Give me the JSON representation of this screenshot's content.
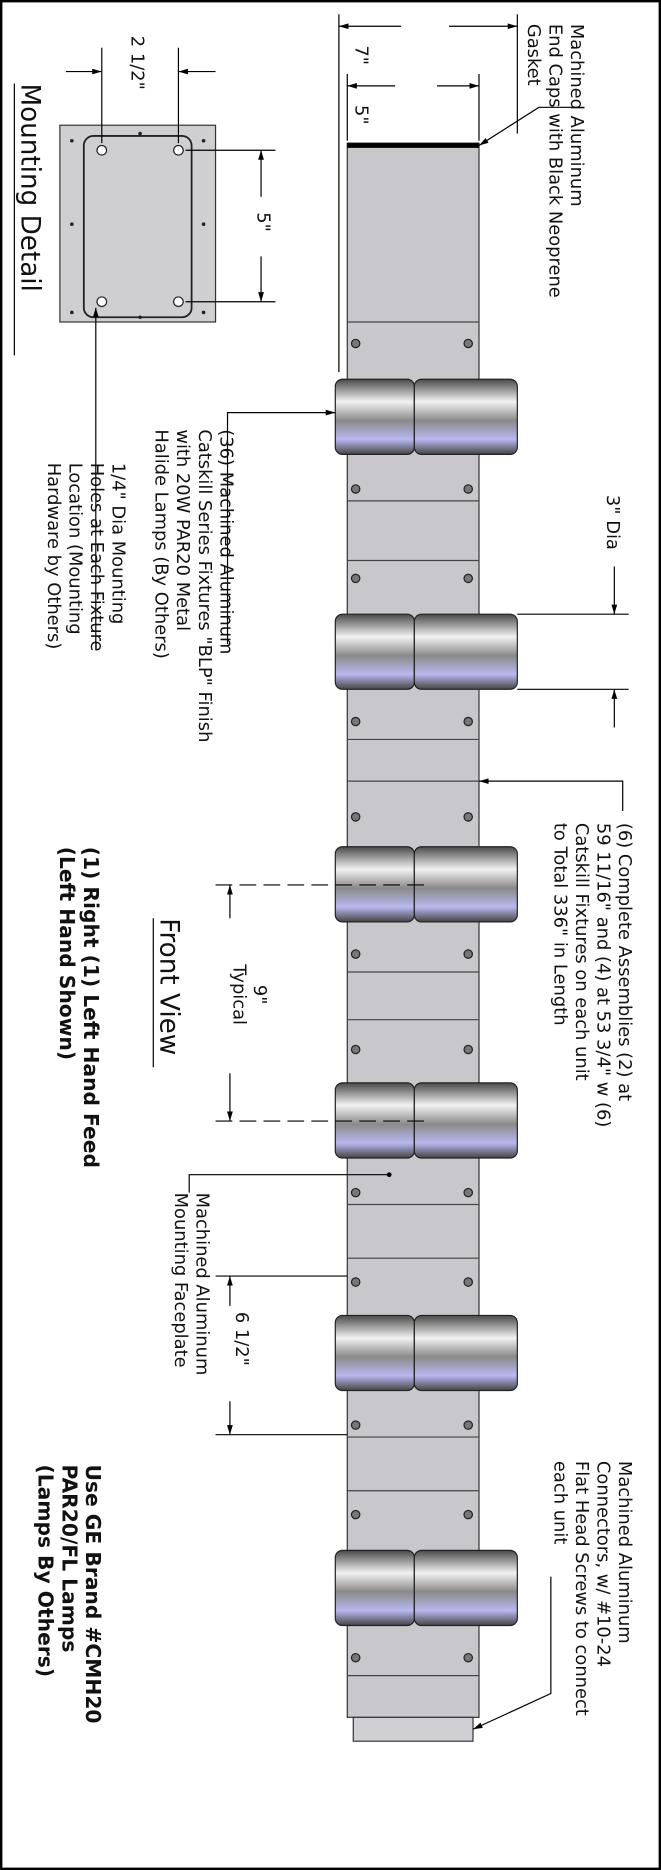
{
  "mounting_detail": {
    "title": "Mounting Detail",
    "width_dim": "2 1/2\"",
    "height_dim": "5\"",
    "holes_note": [
      "1/4\" Dia Mounting",
      "Holes at Each Fixture",
      "Location (Mounting",
      "Hardware by Others)"
    ]
  },
  "front_view": {
    "title": "Front View",
    "overall_dim": "7\"",
    "body_dim": "5\"",
    "end_caps_note": [
      "Machined Aluminum",
      "End Caps with Black Neoprene",
      "Gasket"
    ],
    "fixtures_note": [
      "(36) Machined Aluminum",
      "Catskill Series Fixtures \"BLP\" Finish",
      "with 20W PAR20 Metal",
      "Halide Lamps (By Others)"
    ],
    "dia_dim": "3\" Dia",
    "assemblies_note": [
      "(6) Complete Assemblies (2) at",
      "59 11/16\" and (4) at 53 3/4\" w (6)",
      "Catskill Fixtures on each unit",
      "to Total 336\" in Length"
    ],
    "spacing_dim": [
      "9\"",
      "Typical"
    ],
    "feed_note": [
      "(1) Right  (1) Left Hand Feed",
      "(Left Hand Shown)"
    ],
    "faceplate_note": [
      "Machined Aluminum",
      "Mounting Faceplate"
    ],
    "gap_dim": "6 1/2\"",
    "lamps_note": [
      "Use GE Brand #CMH20",
      "PAR20/FL Lamps",
      "(Lamps By Others)"
    ],
    "connectors_note": [
      "Machined Aluminum",
      "Connectors, w/ #10-24",
      "Flat Head Screws to connect",
      "each unit"
    ]
  }
}
